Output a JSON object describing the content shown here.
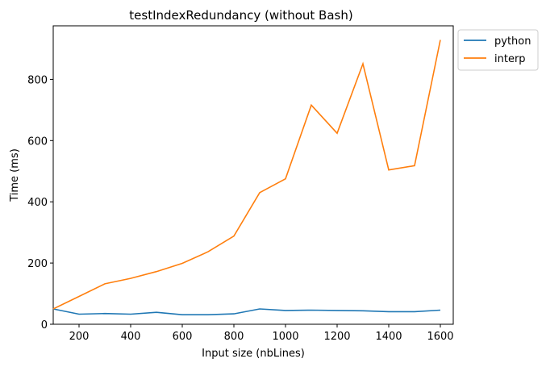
{
  "chart_data": {
    "type": "line",
    "title": "testIndexRedundancy (without Bash)",
    "xlabel": "Input size (nbLines)",
    "ylabel": "Time (ms)",
    "x": [
      100,
      200,
      300,
      400,
      500,
      600,
      700,
      800,
      900,
      1000,
      1100,
      1200,
      1300,
      1400,
      1500,
      1600
    ],
    "series": [
      {
        "name": "python",
        "color": "#1f77b4",
        "values": [
          50,
          33,
          35,
          33,
          39,
          31,
          31,
          34,
          50,
          45,
          46,
          45,
          44,
          41,
          41,
          46
        ]
      },
      {
        "name": "interp",
        "color": "#ff7f0e",
        "values": [
          50,
          91,
          132,
          150,
          172,
          199,
          237,
          288,
          430,
          475,
          716,
          624,
          851,
          504,
          518,
          929
        ]
      }
    ],
    "xlim": [
      100,
      1650
    ],
    "ylim": [
      0,
      975
    ],
    "xticks": [
      200,
      400,
      600,
      800,
      1000,
      1200,
      1400,
      1600
    ],
    "yticks": [
      0,
      200,
      400,
      600,
      800
    ],
    "grid": false,
    "legend_position": "outside-top-right"
  }
}
